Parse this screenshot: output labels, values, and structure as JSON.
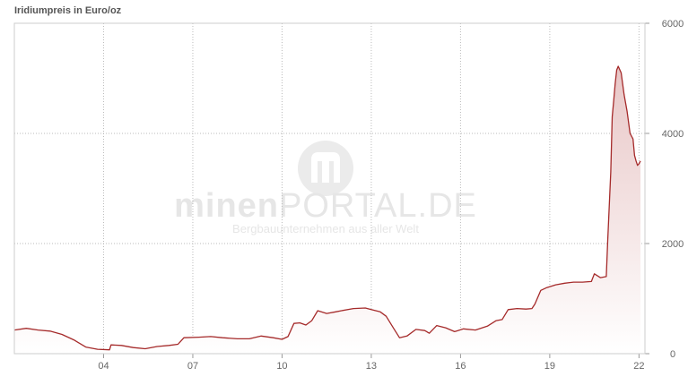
{
  "chart_data": {
    "type": "area",
    "title": "Iridiumpreis in Euro/oz",
    "xlabel": "",
    "ylabel": "",
    "xlim": [
      2001.0,
      2022.2
    ],
    "ylim": [
      0,
      6000
    ],
    "x_ticks": [
      {
        "value": 2004,
        "label": "04"
      },
      {
        "value": 2007,
        "label": "07"
      },
      {
        "value": 2010,
        "label": "10"
      },
      {
        "value": 2013,
        "label": "13"
      },
      {
        "value": 2016,
        "label": "16"
      },
      {
        "value": 2019,
        "label": "19"
      },
      {
        "value": 2022,
        "label": "22"
      }
    ],
    "y_ticks": [
      {
        "value": 0,
        "label": "0"
      },
      {
        "value": 2000,
        "label": "2000"
      },
      {
        "value": 4000,
        "label": "4000"
      },
      {
        "value": 6000,
        "label": "6000"
      }
    ],
    "grid": true,
    "y_axis_position": "right",
    "line_color": "#a52a2a",
    "fill_color_top": "#e8c6c6",
    "fill_color_bottom": "#ffffff",
    "series": [
      {
        "points": [
          [
            2001.0,
            430
          ],
          [
            2001.4,
            460
          ],
          [
            2001.8,
            430
          ],
          [
            2002.2,
            410
          ],
          [
            2002.6,
            350
          ],
          [
            2003.0,
            250
          ],
          [
            2003.4,
            120
          ],
          [
            2003.8,
            80
          ],
          [
            2004.2,
            70
          ],
          [
            2004.25,
            160
          ],
          [
            2004.6,
            150
          ],
          [
            2005.0,
            110
          ],
          [
            2005.4,
            90
          ],
          [
            2005.8,
            130
          ],
          [
            2006.2,
            150
          ],
          [
            2006.5,
            170
          ],
          [
            2006.7,
            290
          ],
          [
            2007.2,
            300
          ],
          [
            2007.6,
            310
          ],
          [
            2008.0,
            290
          ],
          [
            2008.5,
            270
          ],
          [
            2008.9,
            270
          ],
          [
            2009.3,
            320
          ],
          [
            2009.7,
            290
          ],
          [
            2010.0,
            260
          ],
          [
            2010.2,
            310
          ],
          [
            2010.4,
            550
          ],
          [
            2010.6,
            560
          ],
          [
            2010.8,
            520
          ],
          [
            2011.0,
            600
          ],
          [
            2011.2,
            780
          ],
          [
            2011.5,
            730
          ],
          [
            2011.8,
            760
          ],
          [
            2012.0,
            780
          ],
          [
            2012.4,
            820
          ],
          [
            2012.8,
            830
          ],
          [
            2013.0,
            800
          ],
          [
            2013.3,
            760
          ],
          [
            2013.5,
            680
          ],
          [
            2013.75,
            460
          ],
          [
            2013.95,
            290
          ],
          [
            2014.2,
            320
          ],
          [
            2014.5,
            440
          ],
          [
            2014.8,
            420
          ],
          [
            2014.95,
            370
          ],
          [
            2015.2,
            510
          ],
          [
            2015.5,
            470
          ],
          [
            2015.8,
            400
          ],
          [
            2016.1,
            450
          ],
          [
            2016.5,
            430
          ],
          [
            2016.9,
            500
          ],
          [
            2017.2,
            600
          ],
          [
            2017.4,
            620
          ],
          [
            2017.6,
            800
          ],
          [
            2017.9,
            820
          ],
          [
            2018.2,
            810
          ],
          [
            2018.4,
            820
          ],
          [
            2018.5,
            900
          ],
          [
            2018.7,
            1150
          ],
          [
            2018.9,
            1200
          ],
          [
            2019.2,
            1250
          ],
          [
            2019.5,
            1280
          ],
          [
            2019.8,
            1300
          ],
          [
            2020.1,
            1300
          ],
          [
            2020.4,
            1310
          ],
          [
            2020.5,
            1450
          ],
          [
            2020.7,
            1380
          ],
          [
            2020.9,
            1400
          ],
          [
            2020.95,
            2050
          ],
          [
            2021.05,
            3300
          ],
          [
            2021.1,
            4300
          ],
          [
            2021.15,
            4600
          ],
          [
            2021.2,
            4900
          ],
          [
            2021.25,
            5150
          ],
          [
            2021.3,
            5220
          ],
          [
            2021.4,
            5100
          ],
          [
            2021.5,
            4700
          ],
          [
            2021.6,
            4400
          ],
          [
            2021.7,
            4000
          ],
          [
            2021.8,
            3900
          ],
          [
            2021.85,
            3600
          ],
          [
            2021.9,
            3500
          ],
          [
            2021.95,
            3420
          ],
          [
            2022.0,
            3450
          ],
          [
            2022.05,
            3500
          ]
        ]
      }
    ]
  },
  "watermark": {
    "brand_bold": "minen",
    "brand_light": "PORTAL.DE",
    "tagline": "Bergbauunternehmen aus aller Welt"
  }
}
